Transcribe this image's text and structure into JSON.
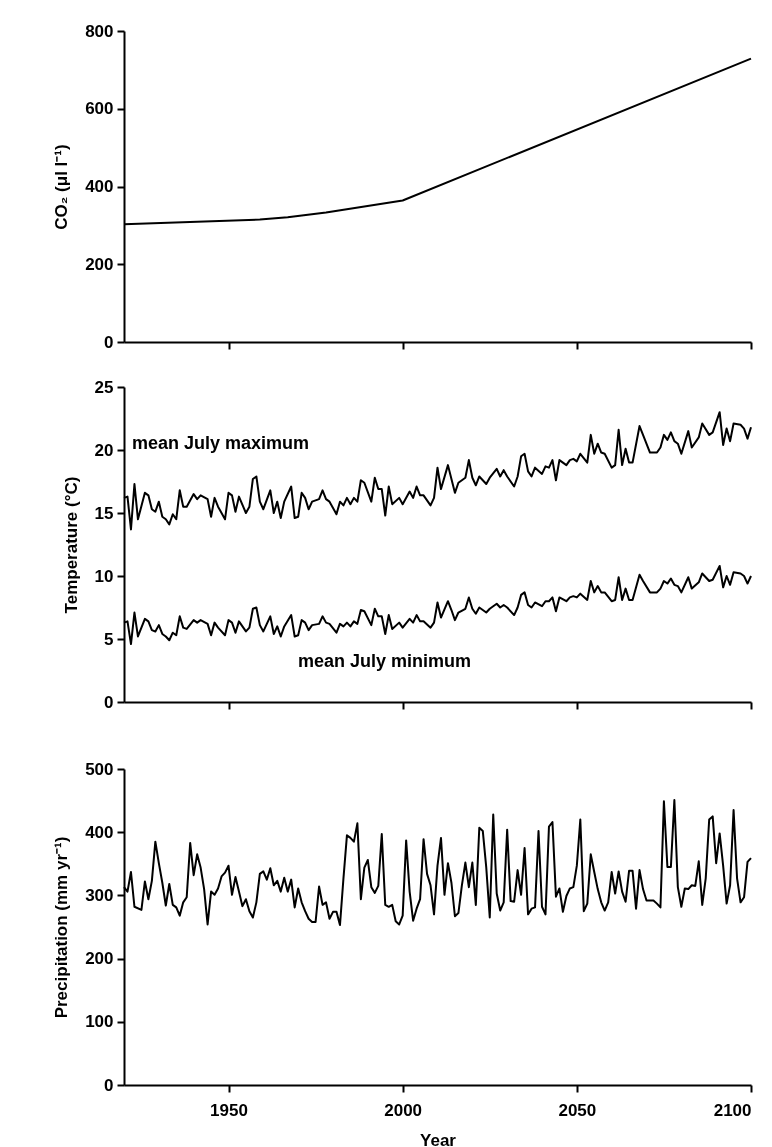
{
  "chart_data": [
    {
      "type": "line",
      "ylabel": "CO₂ (μl l⁻¹)",
      "xlim": [
        1920,
        2100
      ],
      "xticks": [
        1950,
        2000,
        2050,
        2100
      ],
      "ylim": [
        0,
        800
      ],
      "yticks": [
        0,
        200,
        400,
        600,
        800
      ],
      "tick_labels": "y",
      "x": [
        1920,
        1959,
        1967,
        1978,
        2000,
        2100
      ],
      "series": [
        {
          "color": "#000000",
          "values": [
            303,
            315,
            321,
            333,
            364,
            729
          ]
        }
      ]
    },
    {
      "type": "line",
      "ylabel": "Temperature (°C)",
      "xlim": [
        1920,
        2100
      ],
      "xticks": [
        1950,
        2000,
        2050,
        2100
      ],
      "ylim": [
        0,
        25
      ],
      "yticks": [
        0,
        5,
        10,
        15,
        20,
        25
      ],
      "tick_labels": "y",
      "x": [
        1920,
        1921,
        1922,
        1923,
        1924,
        1926,
        1927,
        1928,
        1929,
        1930,
        1931,
        1932,
        1933,
        1934,
        1935,
        1936,
        1937,
        1938,
        1940,
        1941,
        1942,
        1944,
        1945,
        1946,
        1947,
        1949,
        1950,
        1951,
        1952,
        1953,
        1955,
        1956,
        1957,
        1958,
        1959,
        1960,
        1962,
        1963,
        1964,
        1965,
        1966,
        1968,
        1969,
        1970,
        1971,
        1972,
        1973,
        1974,
        1976,
        1977,
        1978,
        1979,
        1981,
        1982,
        1983,
        1984,
        1985,
        1986,
        1987,
        1988,
        1989,
        1991,
        1992,
        1993,
        1994,
        1995,
        1996,
        1997,
        1999,
        2000,
        2002,
        2003,
        2004,
        2005,
        2006,
        2008,
        2009,
        2010,
        2011,
        2013,
        2014,
        2015,
        2016,
        2018,
        2019,
        2020,
        2021,
        2022,
        2024,
        2025,
        2027,
        2028,
        2029,
        2030,
        2032,
        2033,
        2034,
        2035,
        2036,
        2037,
        2038,
        2040,
        2041,
        2042,
        2043,
        2044,
        2045,
        2047,
        2048,
        2049,
        2050,
        2051,
        2053,
        2054,
        2055,
        2056,
        2057,
        2058,
        2060,
        2061,
        2062,
        2063,
        2064,
        2065,
        2066,
        2068,
        2069,
        2071,
        2073,
        2074,
        2075,
        2076,
        2077,
        2078,
        2079,
        2080,
        2082,
        2083,
        2085,
        2086,
        2088,
        2089,
        2091,
        2092,
        2093,
        2094,
        2095,
        2097,
        2098,
        2099,
        2100
      ],
      "series": [
        {
          "name": "mean July maximum",
          "color": "#000000",
          "values": [
            16.2,
            16.3,
            13.7,
            17.3,
            14.5,
            16.6,
            16.4,
            15.3,
            15.1,
            15.9,
            14.7,
            14.5,
            14.1,
            14.9,
            14.5,
            16.8,
            15.5,
            15.5,
            16.5,
            16.1,
            16.4,
            16.1,
            14.7,
            16.2,
            15.5,
            14.5,
            16.6,
            16.4,
            15.1,
            16.3,
            15.0,
            15.5,
            17.7,
            17.9,
            15.9,
            15.3,
            16.8,
            15.0,
            15.9,
            14.6,
            15.9,
            17.1,
            14.6,
            14.7,
            16.6,
            16.2,
            15.3,
            15.9,
            16.1,
            16.8,
            16.1,
            15.9,
            14.9,
            15.9,
            15.6,
            16.2,
            15.7,
            16.2,
            15.9,
            17.6,
            17.4,
            15.9,
            17.8,
            16.9,
            16.9,
            14.8,
            17.1,
            15.7,
            16.2,
            15.7,
            16.7,
            16.2,
            17.1,
            16.4,
            16.4,
            15.6,
            16.2,
            18.6,
            16.9,
            18.8,
            17.7,
            16.6,
            17.4,
            17.8,
            19.2,
            17.8,
            17.2,
            17.9,
            17.3,
            17.8,
            18.5,
            17.9,
            18.4,
            17.9,
            17.1,
            17.9,
            19.5,
            19.7,
            18.3,
            17.9,
            18.6,
            18.1,
            18.7,
            18.6,
            19.2,
            17.6,
            19.2,
            18.8,
            19.2,
            19.3,
            19.1,
            19.7,
            19.0,
            21.2,
            19.7,
            20.5,
            19.8,
            19.7,
            18.6,
            18.8,
            21.6,
            18.8,
            20.1,
            19.0,
            19.0,
            21.9,
            21.2,
            19.8,
            19.8,
            20.2,
            21.2,
            20.8,
            21.4,
            20.7,
            20.5,
            19.7,
            21.5,
            20.2,
            21.0,
            22.1,
            21.2,
            21.4,
            23.0,
            20.4,
            21.7,
            20.7,
            22.1,
            22.0,
            21.7,
            20.9,
            21.8
          ]
        },
        {
          "name": "mean July minimum",
          "color": "#000000",
          "values": [
            6.3,
            6.4,
            4.6,
            7.1,
            5.2,
            6.6,
            6.4,
            5.7,
            5.6,
            6.1,
            5.4,
            5.2,
            4.9,
            5.5,
            5.3,
            6.8,
            5.9,
            5.8,
            6.5,
            6.3,
            6.5,
            6.2,
            5.3,
            6.3,
            5.9,
            5.3,
            6.5,
            6.3,
            5.5,
            6.4,
            5.6,
            5.9,
            7.4,
            7.5,
            6.1,
            5.6,
            6.8,
            5.4,
            6.0,
            5.2,
            6.0,
            6.9,
            5.2,
            5.3,
            6.5,
            6.3,
            5.7,
            6.1,
            6.2,
            6.8,
            6.3,
            6.2,
            5.5,
            6.2,
            6.0,
            6.3,
            6.0,
            6.4,
            6.2,
            7.3,
            7.2,
            6.1,
            7.4,
            6.8,
            6.8,
            5.4,
            6.9,
            5.8,
            6.3,
            5.9,
            6.6,
            6.3,
            6.9,
            6.4,
            6.4,
            5.9,
            6.3,
            7.9,
            6.7,
            8.0,
            7.3,
            6.5,
            7.1,
            7.4,
            8.3,
            7.4,
            7.0,
            7.5,
            7.1,
            7.4,
            7.8,
            7.5,
            7.7,
            7.5,
            6.9,
            7.5,
            8.5,
            8.7,
            7.7,
            7.5,
            7.9,
            7.6,
            8.0,
            8.0,
            8.3,
            7.2,
            8.3,
            8.0,
            8.3,
            8.4,
            8.3,
            8.6,
            8.1,
            9.6,
            8.7,
            9.2,
            8.7,
            8.7,
            8.0,
            8.1,
            9.9,
            8.1,
            9.0,
            8.1,
            8.1,
            10.1,
            9.6,
            8.7,
            8.7,
            9.0,
            9.6,
            9.4,
            9.8,
            9.3,
            9.2,
            8.7,
            9.9,
            9.0,
            9.5,
            10.2,
            9.6,
            9.7,
            10.8,
            9.1,
            10.0,
            9.3,
            10.3,
            10.2,
            10.0,
            9.4,
            10.0
          ]
        }
      ]
    },
    {
      "type": "line",
      "xlabel": "Year",
      "ylabel": "Precipitation (mm yr⁻¹)",
      "xlim": [
        1920,
        2100
      ],
      "xticks": [
        1950,
        2000,
        2050,
        2100
      ],
      "ylim": [
        0,
        500
      ],
      "yticks": [
        0,
        100,
        200,
        300,
        400,
        500
      ],
      "x": [
        1920,
        1921,
        1922,
        1923,
        1925,
        1926,
        1927,
        1928,
        1929,
        1930,
        1931,
        1932,
        1933,
        1934,
        1935,
        1936,
        1937,
        1938,
        1939,
        1940,
        1941,
        1942,
        1943,
        1944,
        1945,
        1946,
        1947,
        1948,
        1949,
        1950,
        1951,
        1952,
        1953,
        1954,
        1955,
        1956,
        1957,
        1958,
        1959,
        1960,
        1961,
        1962,
        1963,
        1964,
        1965,
        1966,
        1967,
        1968,
        1969,
        1970,
        1971,
        1972,
        1973,
        1974,
        1975,
        1976,
        1977,
        1978,
        1979,
        1980,
        1981,
        1982,
        1983,
        1984,
        1985,
        1986,
        1987,
        1988,
        1989,
        1990,
        1991,
        1992,
        1993,
        1994,
        1995,
        1996,
        1997,
        1998,
        1999,
        2000,
        2001,
        2002,
        2003,
        2004,
        2005,
        2006,
        2007,
        2008,
        2009,
        2010,
        2011,
        2012,
        2013,
        2014,
        2015,
        2016,
        2017,
        2018,
        2019,
        2020,
        2021,
        2022,
        2023,
        2024,
        2025,
        2026,
        2027,
        2028,
        2029,
        2030,
        2031,
        2032,
        2033,
        2034,
        2035,
        2036,
        2037,
        2038,
        2039,
        2040,
        2041,
        2042,
        2043,
        2044,
        2045,
        2046,
        2047,
        2048,
        2049,
        2050,
        2051,
        2052,
        2053,
        2054,
        2055,
        2056,
        2057,
        2058,
        2059,
        2060,
        2061,
        2062,
        2063,
        2064,
        2065,
        2066,
        2067,
        2068,
        2069,
        2070,
        2071,
        2072,
        2073,
        2074,
        2075,
        2076,
        2077,
        2078,
        2079,
        2080,
        2081,
        2082,
        2083,
        2084,
        2085,
        2086,
        2087,
        2088,
        2089,
        2090,
        2091,
        2092,
        2093,
        2094,
        2095,
        2096,
        2097,
        2098,
        2099,
        2100
      ],
      "series": [
        {
          "color": "#000000",
          "values": [
            313,
            306,
            337,
            282,
            277,
            322,
            294,
            323,
            385,
            351,
            320,
            284,
            318,
            285,
            281,
            268,
            289,
            297,
            383,
            332,
            365,
            344,
            310,
            254,
            306,
            301,
            311,
            330,
            336,
            347,
            301,
            329,
            306,
            283,
            294,
            275,
            265,
            289,
            334,
            338,
            325,
            343,
            316,
            323,
            306,
            328,
            306,
            325,
            281,
            311,
            289,
            275,
            263,
            258,
            258,
            314,
            285,
            289,
            263,
            274,
            274,
            253,
            327,
            395,
            391,
            385,
            414,
            294,
            344,
            356,
            313,
            304,
            315,
            397,
            285,
            282,
            285,
            259,
            254,
            268,
            387,
            306,
            260,
            279,
            294,
            389,
            334,
            316,
            270,
            347,
            391,
            301,
            351,
            320,
            267,
            272,
            316,
            352,
            313,
            352,
            285,
            407,
            402,
            344,
            265,
            428,
            303,
            276,
            289,
            404,
            291,
            290,
            340,
            301,
            375,
            270,
            279,
            281,
            402,
            282,
            270,
            409,
            416,
            298,
            311,
            274,
            299,
            311,
            313,
            347,
            420,
            275,
            287,
            365,
            337,
            310,
            289,
            276,
            289,
            337,
            303,
            338,
            306,
            290,
            339,
            339,
            279,
            340,
            310,
            292,
            292,
            292,
            287,
            281,
            449,
            345,
            345,
            451,
            313,
            282,
            311,
            310,
            316,
            315,
            354,
            285,
            327,
            420,
            425,
            351,
            398,
            347,
            287,
            316,
            435,
            327,
            289,
            297,
            353,
            359
          ]
        }
      ]
    }
  ]
}
